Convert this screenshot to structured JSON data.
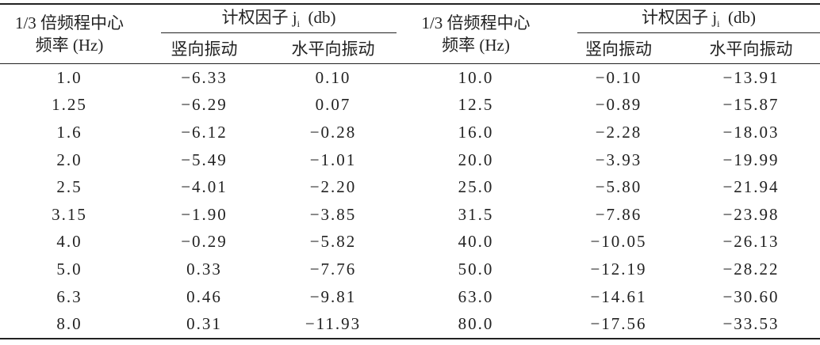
{
  "table": {
    "columns": [
      {
        "freq_line1": "1/3 倍频程中心",
        "freq_line2": "频率 (Hz)",
        "weight": "计权因子 j",
        "weight_sub": "i",
        "weight_unit": "(db)",
        "sub_columns": [
          "竖向振动",
          "水平向振动"
        ]
      },
      {
        "freq_line1": "1/3 倍频程中心",
        "freq_line2": "频率 (Hz)",
        "weight": "计权因子 j",
        "weight_sub": "i",
        "weight_unit": "(db)",
        "sub_columns": [
          "竖向振动",
          "水平向振动"
        ]
      }
    ],
    "rows": [
      [
        "1.0",
        "−6.33",
        "0.10",
        "10.0",
        "−0.10",
        "−13.91"
      ],
      [
        "1.25",
        "−6.29",
        "0.07",
        "12.5",
        "−0.89",
        "−15.87"
      ],
      [
        "1.6",
        "−6.12",
        "−0.28",
        "16.0",
        "−2.28",
        "−18.03"
      ],
      [
        "2.0",
        "−5.49",
        "−1.01",
        "20.0",
        "−3.93",
        "−19.99"
      ],
      [
        "2.5",
        "−4.01",
        "−2.20",
        "25.0",
        "−5.80",
        "−21.94"
      ],
      [
        "3.15",
        "−1.90",
        "−3.85",
        "31.5",
        "−7.86",
        "−23.98"
      ],
      [
        "4.0",
        "−0.29",
        "−5.82",
        "40.0",
        "−10.05",
        "−26.13"
      ],
      [
        "5.0",
        "0.33",
        "−7.76",
        "50.0",
        "−12.19",
        "−28.22"
      ],
      [
        "6.3",
        "0.46",
        "−9.81",
        "63.0",
        "−14.61",
        "−30.60"
      ],
      [
        "8.0",
        "0.31",
        "−11.93",
        "80.0",
        "−17.56",
        "−33.53"
      ]
    ]
  }
}
